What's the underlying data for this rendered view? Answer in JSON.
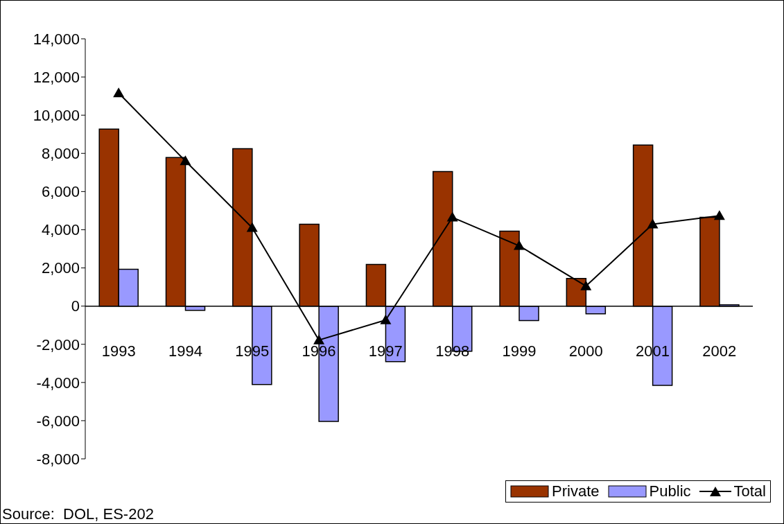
{
  "chart_data": {
    "type": "bar",
    "categories": [
      "1993",
      "1994",
      "1995",
      "1996",
      "1997",
      "1998",
      "1999",
      "2000",
      "2001",
      "2002"
    ],
    "series": [
      {
        "name": "Private",
        "color": "#993300",
        "values": [
          9270,
          7780,
          8250,
          4290,
          2180,
          7050,
          3930,
          1450,
          8440,
          4650
        ]
      },
      {
        "name": "Public",
        "color": "#9999ff",
        "values": [
          1930,
          -220,
          -4110,
          -6040,
          -2910,
          -2360,
          -760,
          -400,
          -4150,
          70
        ]
      },
      {
        "name": "Total",
        "type": "line",
        "color": "#000000",
        "values": [
          11160,
          7600,
          4110,
          -1780,
          -730,
          4650,
          3160,
          1050,
          4290,
          4730
        ]
      }
    ],
    "ylim": [
      -8000,
      14000
    ],
    "yticks": [
      {
        "value": -8000,
        "label": "-8,000"
      },
      {
        "value": -6000,
        "label": "-6,000"
      },
      {
        "value": -4000,
        "label": "-4,000"
      },
      {
        "value": -2000,
        "label": "-2,000"
      },
      {
        "value": 0,
        "label": "0"
      },
      {
        "value": 2000,
        "label": "2,000"
      },
      {
        "value": 4000,
        "label": "4,000"
      },
      {
        "value": 6000,
        "label": "6,000"
      },
      {
        "value": 8000,
        "label": "8,000"
      },
      {
        "value": 10000,
        "label": "10,000"
      },
      {
        "value": 12000,
        "label": "12,000"
      },
      {
        "value": 14000,
        "label": "14,000"
      }
    ],
    "legend": "bottom right",
    "marker": "triangle",
    "line_style": "solid",
    "annotations": [
      "Source:  DOL, ES-202"
    ]
  }
}
